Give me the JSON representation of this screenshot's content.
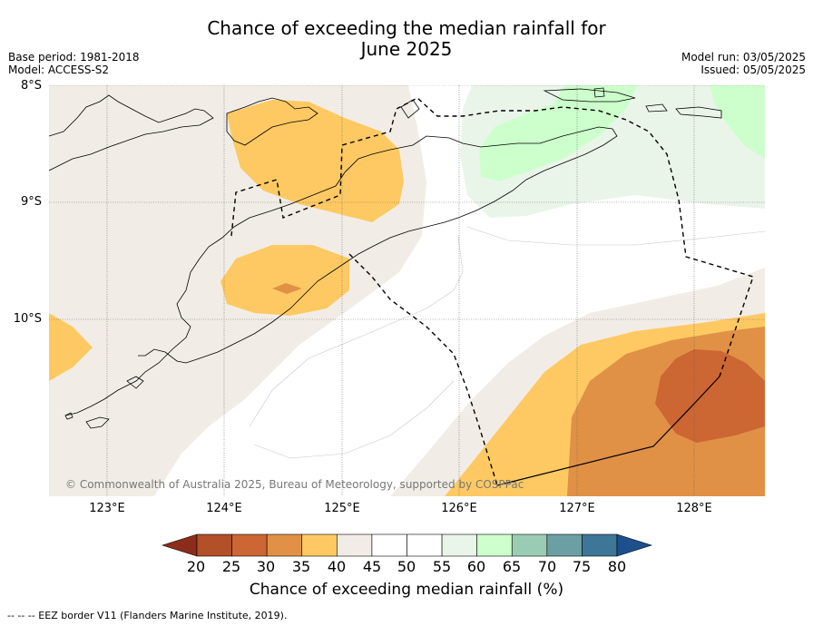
{
  "title_line1": "Chance of exceeding the median rainfall for",
  "title_line2": "June 2025",
  "meta_left": {
    "base_period": "Base period: 1981-2018",
    "model": "Model: ACCESS-S2"
  },
  "meta_right": {
    "model_run": "Model run: 03/05/2025",
    "issued": "Issued: 05/05/2025"
  },
  "lat_labels": [
    "8°S",
    "9°S",
    "10°S"
  ],
  "lon_labels": [
    "123°E",
    "124°E",
    "125°E",
    "126°E",
    "127°E",
    "128°E"
  ],
  "copyright": "© Commonwealth of Australia 2025, Bureau of Meteorology, supported by COSPPac",
  "colorbar": {
    "ticks": [
      "20",
      "25",
      "30",
      "35",
      "40",
      "45",
      "50",
      "55",
      "60",
      "65",
      "70",
      "75",
      "80"
    ],
    "label": "Chance of exceeding median rainfall (%)",
    "colors": [
      "#b25027",
      "#cc6633",
      "#e09146",
      "#fec962",
      "#f1ede6",
      "#ffffff",
      "#ffffff",
      "#eaf5ea",
      "#ccffcc",
      "#99ccb3",
      "#6b9fa3",
      "#3e7697"
    ],
    "under_color": "#8c2d1c",
    "over_color": "#1d4f8c"
  },
  "footer": "--  --  -- EEZ border V11 (Flanders Marine Institute, 2019)."
}
